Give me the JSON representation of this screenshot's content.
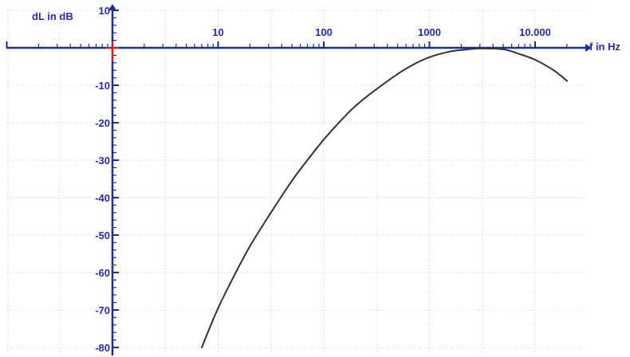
{
  "chart_data": {
    "type": "line",
    "title": "",
    "xlabel": "f in Hz",
    "ylabel": "dL in dB",
    "x_scale": "log",
    "xlim": [
      0.1,
      30000
    ],
    "ylim": [
      -80,
      10
    ],
    "x_ticks": [
      {
        "value": 10,
        "label": "10"
      },
      {
        "value": 100,
        "label": "100"
      },
      {
        "value": 1000,
        "label": "1000"
      },
      {
        "value": 10000,
        "label": "10.000"
      }
    ],
    "y_ticks": [
      {
        "value": 10,
        "label": "10"
      },
      {
        "value": -10,
        "label": "-10"
      },
      {
        "value": -20,
        "label": "-20"
      },
      {
        "value": -30,
        "label": "-30"
      },
      {
        "value": -40,
        "label": "-40"
      },
      {
        "value": -50,
        "label": "-50"
      },
      {
        "value": -60,
        "label": "-60"
      },
      {
        "value": -70,
        "label": "-70"
      },
      {
        "value": -80,
        "label": "-80"
      }
    ],
    "grid": true,
    "legend": "none",
    "series": [
      {
        "x": [
          7,
          10,
          15,
          20,
          30,
          50,
          70,
          100,
          150,
          200,
          300,
          500,
          700,
          1000,
          1500,
          2000,
          3000,
          5000,
          7000,
          10000,
          15000,
          20000
        ],
        "y": [
          -80,
          -69.5,
          -59.5,
          -53,
          -45,
          -35.5,
          -30,
          -24.5,
          -19,
          -15.5,
          -11.5,
          -7,
          -4.5,
          -2.5,
          -1.1,
          -0.6,
          -0.2,
          -0.4,
          -1.6,
          -3.2,
          -6,
          -8.8
        ]
      }
    ],
    "colors": {
      "curve": "#333333",
      "axes": "#1c2f8e",
      "labels": "#2b2bb0",
      "grid": "#dddddd",
      "origin_marker": "#e01818"
    }
  }
}
